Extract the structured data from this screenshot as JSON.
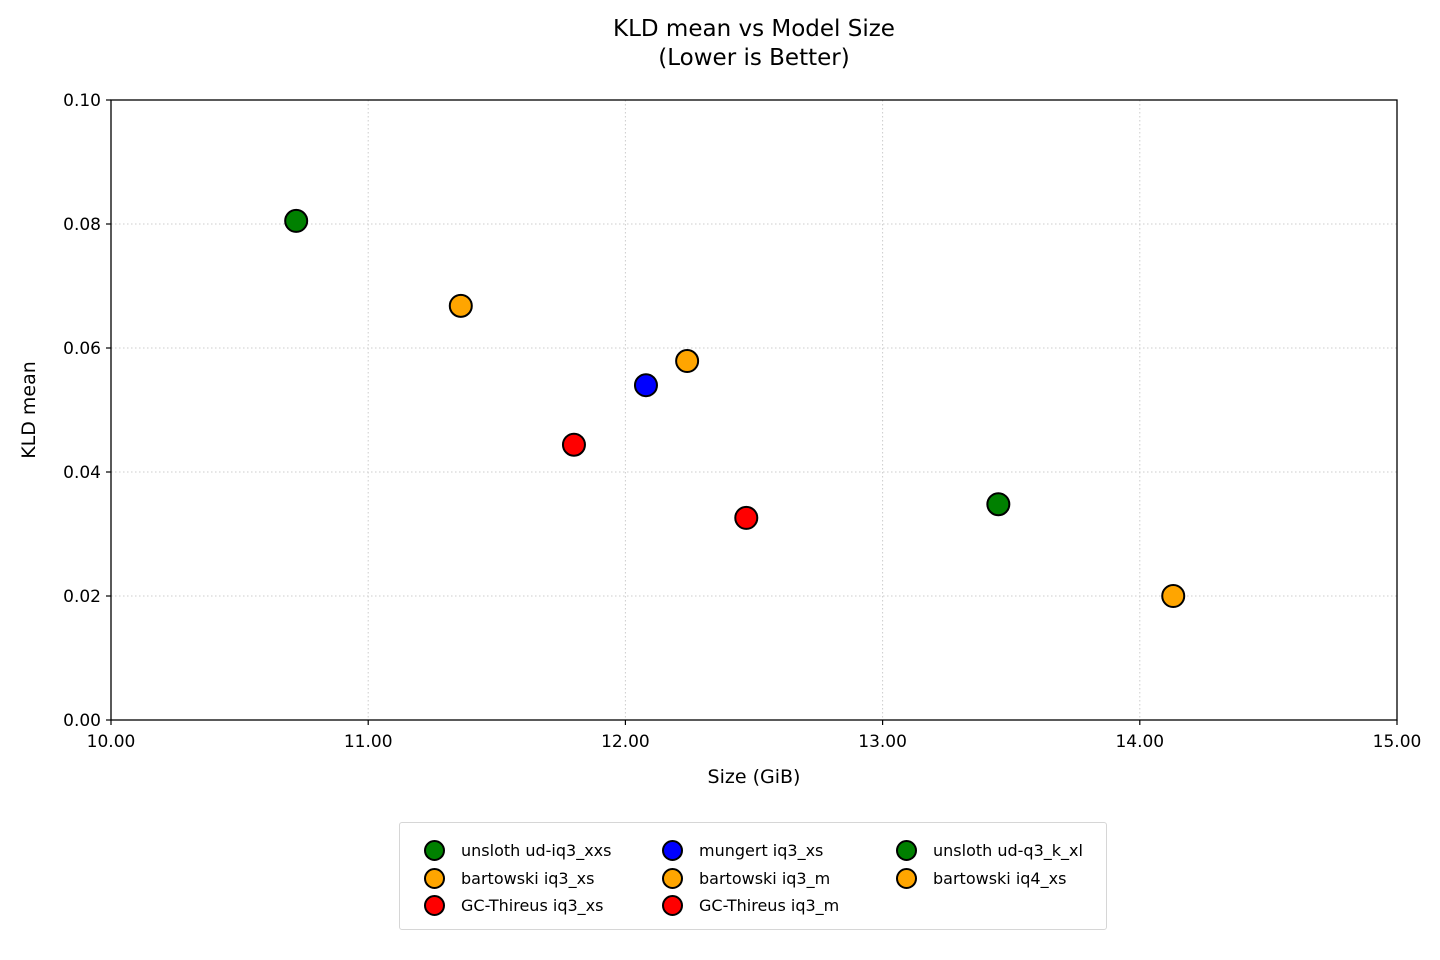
{
  "chart_data": {
    "type": "scatter",
    "title": "KLD mean vs Model Size",
    "subtitle": "(Lower is Better)",
    "xlabel": "Size (GiB)",
    "ylabel": "KLD mean",
    "xlim": [
      10.0,
      15.0
    ],
    "ylim": [
      0.0,
      0.1
    ],
    "xticks": [
      "10.00",
      "11.00",
      "12.00",
      "13.00",
      "14.00",
      "15.00"
    ],
    "yticks": [
      "0.00",
      "0.02",
      "0.04",
      "0.06",
      "0.08",
      "0.10"
    ],
    "grid": true,
    "legend_position": "below plot, 3 columns",
    "series": [
      {
        "name": "unsloth ud-iq3_xxs",
        "color": "#008000",
        "x": 10.72,
        "y": 0.0805
      },
      {
        "name": "bartowski iq3_xs",
        "color": "#FFA500",
        "x": 11.36,
        "y": 0.0668
      },
      {
        "name": "GC-Thireus iq3_xs",
        "color": "#FF0000",
        "x": 11.8,
        "y": 0.0444
      },
      {
        "name": "mungert iq3_xs",
        "color": "#0000FF",
        "x": 12.08,
        "y": 0.054
      },
      {
        "name": "bartowski iq3_m",
        "color": "#FFA500",
        "x": 12.24,
        "y": 0.0579
      },
      {
        "name": "GC-Thireus iq3_m",
        "color": "#FF0000",
        "x": 12.47,
        "y": 0.0326
      },
      {
        "name": "unsloth ud-q3_k_xl",
        "color": "#008000",
        "x": 13.45,
        "y": 0.0348
      },
      {
        "name": "bartowski iq4_xs",
        "color": "#FFA500",
        "x": 14.13,
        "y": 0.02
      }
    ]
  },
  "legend": {
    "columns": [
      [
        {
          "label": "unsloth ud-iq3_xxs",
          "color": "#008000"
        },
        {
          "label": "bartowski iq3_xs",
          "color": "#FFA500"
        },
        {
          "label": "GC-Thireus iq3_xs",
          "color": "#FF0000"
        }
      ],
      [
        {
          "label": "mungert iq3_xs",
          "color": "#0000FF"
        },
        {
          "label": "bartowski iq3_m",
          "color": "#FFA500"
        },
        {
          "label": "GC-Thireus iq3_m",
          "color": "#FF0000"
        }
      ],
      [
        {
          "label": "unsloth ud-q3_k_xl",
          "color": "#008000"
        },
        {
          "label": "bartowski iq4_xs",
          "color": "#FFA500"
        }
      ]
    ]
  }
}
